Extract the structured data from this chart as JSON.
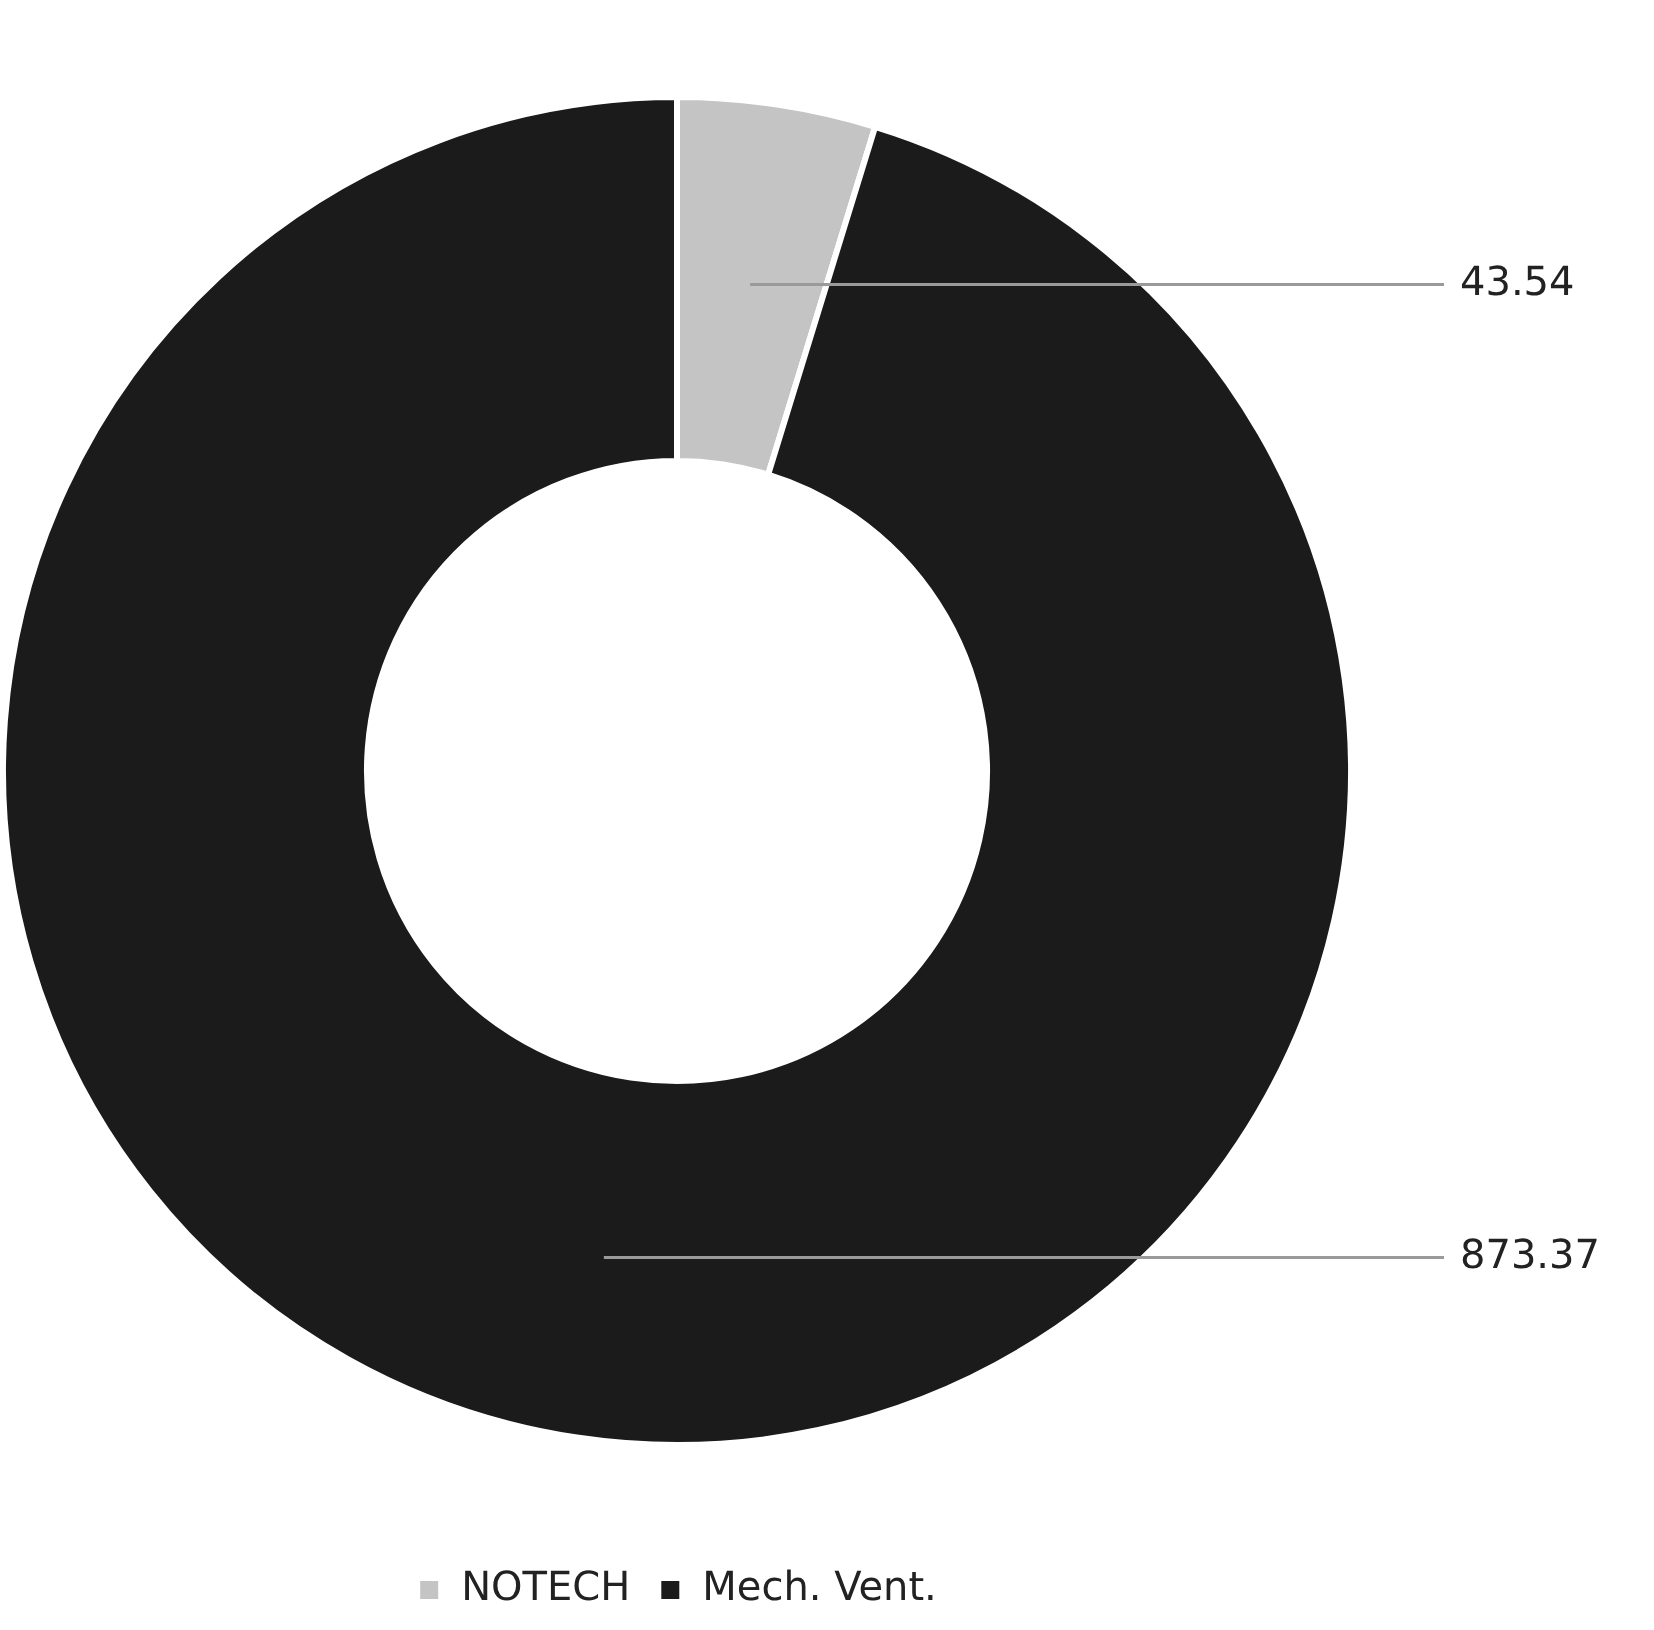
{
  "chart_data": {
    "type": "donut",
    "categories": [
      "NOTECH",
      "Mech. Vent."
    ],
    "values": [
      43.54,
      873.37
    ],
    "colors": [
      "#c4c4c4",
      "#1b1b1b"
    ],
    "data_labels": true,
    "legend": "bottom"
  }
}
